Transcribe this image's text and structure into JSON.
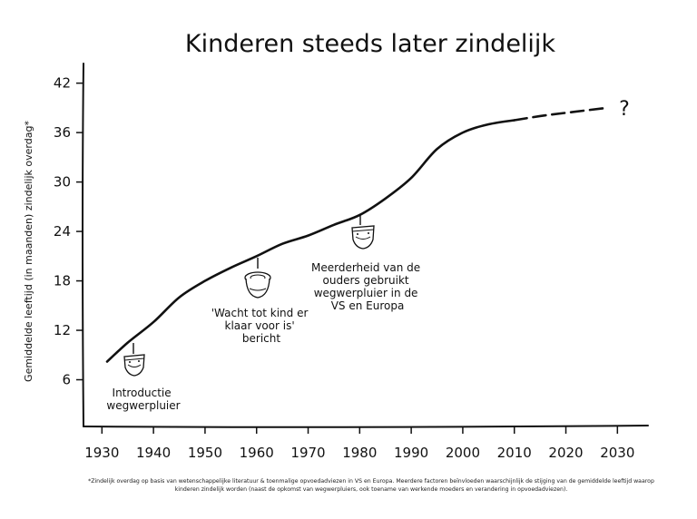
{
  "chart_data": {
    "type": "line",
    "title": "Kinderen steeds later zindelijk",
    "ylabel": "Gemiddelde leeftijd (in maanden) zindelijk overdag*",
    "xlabel": "",
    "xlim": [
      1928,
      2035
    ],
    "ylim": [
      4,
      46
    ],
    "x_ticks": [
      "1930",
      "1940",
      "1950",
      "1960",
      "1970",
      "1980",
      "1990",
      "2000",
      "2010",
      "2020",
      "2030"
    ],
    "y_ticks": [
      "6",
      "12",
      "18",
      "24",
      "30",
      "36",
      "42"
    ],
    "series": [
      {
        "style": "solid",
        "x": [
          1931,
          1935,
          1940,
          1945,
          1950,
          1955,
          1960,
          1965,
          1970,
          1975,
          1980,
          1985,
          1990,
          1995,
          2000,
          2005,
          2010
        ],
        "y": [
          8.2,
          10.5,
          13.0,
          16.0,
          18.0,
          19.6,
          21.0,
          22.5,
          23.5,
          24.8,
          26.0,
          28.0,
          30.5,
          34.0,
          36.0,
          37.0,
          37.5
        ]
      },
      {
        "style": "dashed",
        "x": [
          2010,
          2015,
          2020,
          2028
        ],
        "y": [
          37.5,
          38.0,
          38.4,
          39.0
        ]
      }
    ],
    "annotations": [
      {
        "lines": [
          "Introductie",
          "wegwerpluier"
        ],
        "icon": "diaper-icon"
      },
      {
        "lines": [
          "'Wacht tot kind er",
          "klaar voor is'",
          "bericht"
        ],
        "icon": "potty-icon"
      },
      {
        "lines": [
          "Meerderheid van de",
          "ouders gebruikt",
          "wegwerpluier in de",
          "VS en Europa"
        ],
        "icon": "diaper-icon"
      }
    ],
    "end_marker": "?",
    "grid": false
  },
  "footnote": "*Zindelijk overdag op basis van wetenschappelijke literatuur & toenmalige opvoedadviezen in VS en Europa. Meerdere factoren beïnvloeden waarschijnlijk de stijging van de gemiddelde leeftijd waarop kinderen zindelijk worden (naast de opkomst van wegwerpluiers, ook toename van werkende moeders en verandering in opvoedadviezen)."
}
